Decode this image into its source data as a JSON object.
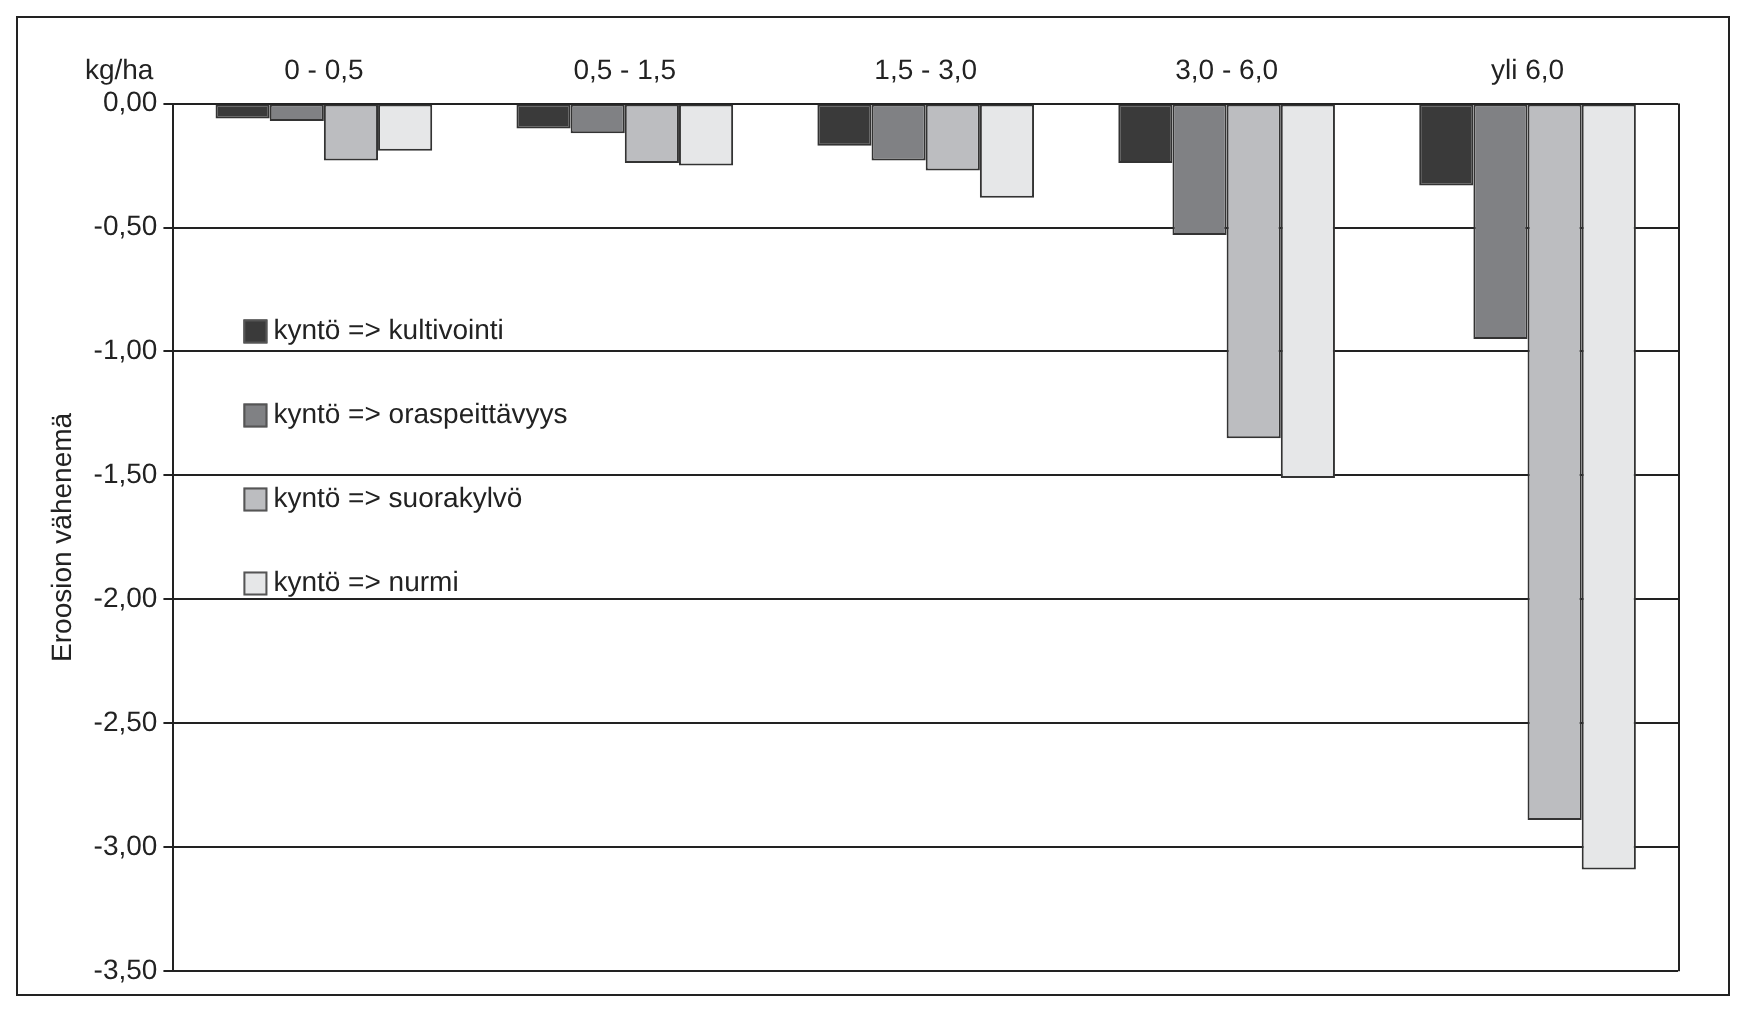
{
  "chart_data": {
    "type": "bar",
    "xlabel": "kg/ha",
    "ylabel": "Eroosion vähenemä",
    "categories": [
      "0 - 0,5",
      "0,5 - 1,5",
      "1,5 - 3,0",
      "3,0 - 6,0",
      "yli 6,0"
    ],
    "series": [
      {
        "name": "kyntö => kultivointi",
        "color": "#3a3a3a",
        "values": [
          -0.06,
          -0.1,
          -0.17,
          -0.24,
          -0.33
        ]
      },
      {
        "name": "kyntö => oraspeittävyys",
        "color": "#808184",
        "values": [
          -0.07,
          -0.12,
          -0.23,
          -0.53,
          -0.95
        ]
      },
      {
        "name": "kyntö => suorakylvö",
        "color": "#bcbdc0",
        "values": [
          -0.23,
          -0.24,
          -0.27,
          -1.35,
          -2.89
        ]
      },
      {
        "name": "kyntö => nurmi",
        "color": "#e6e7e8",
        "values": [
          -0.19,
          -0.25,
          -0.38,
          -1.51,
          -3.09
        ]
      }
    ],
    "ylim": [
      -3.5,
      0
    ],
    "yticks": [
      {
        "value": 0,
        "label": "0,00"
      },
      {
        "value": -0.5,
        "label": "-0,50"
      },
      {
        "value": -1,
        "label": "-1,00"
      },
      {
        "value": -1.5,
        "label": "-1,50"
      },
      {
        "value": -2,
        "label": "-2,00"
      },
      {
        "value": -2.5,
        "label": "-2,50"
      },
      {
        "value": -3,
        "label": "-3,00"
      },
      {
        "value": -3.5,
        "label": "-3,50"
      }
    ],
    "grid": "y",
    "legend": "left"
  }
}
